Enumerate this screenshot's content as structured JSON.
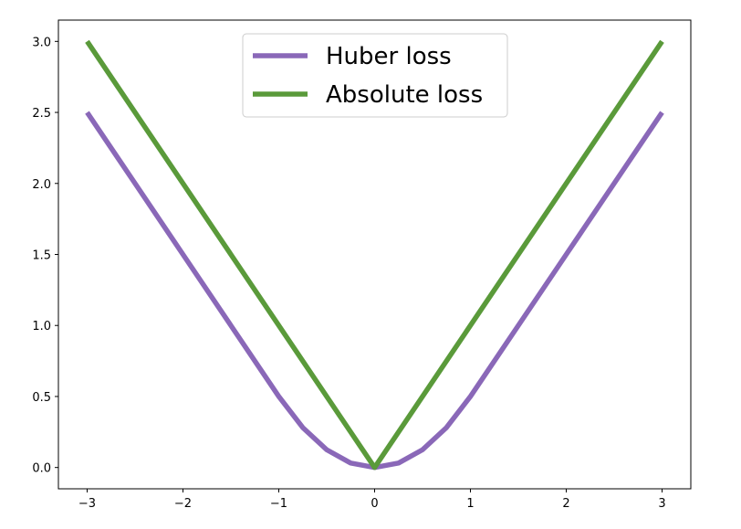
{
  "chart_data": {
    "type": "line",
    "title": "",
    "xlabel": "",
    "ylabel": "",
    "xlim": [
      -3.3,
      3.3
    ],
    "ylim": [
      -0.15,
      3.15
    ],
    "xticks": [
      -3,
      -2,
      -1,
      0,
      1,
      2,
      3
    ],
    "xtick_labels": [
      "−3",
      "−2",
      "−1",
      "0",
      "1",
      "2",
      "3"
    ],
    "yticks": [
      0.0,
      0.5,
      1.0,
      1.5,
      2.0,
      2.5,
      3.0
    ],
    "ytick_labels": [
      "0.0",
      "0.5",
      "1.0",
      "1.5",
      "2.0",
      "2.5",
      "3.0"
    ],
    "grid": false,
    "legend_position": "top-center",
    "series": [
      {
        "name": "Huber loss",
        "color": "#8a68b8",
        "x": [
          -3,
          -2.5,
          -2,
          -1.5,
          -1,
          -0.75,
          -0.5,
          -0.25,
          0,
          0.25,
          0.5,
          0.75,
          1,
          1.5,
          2,
          2.5,
          3
        ],
        "y": [
          2.5,
          2.0,
          1.5,
          1.0,
          0.5,
          0.28125,
          0.125,
          0.03125,
          0.0,
          0.03125,
          0.125,
          0.28125,
          0.5,
          1.0,
          1.5,
          2.0,
          2.5
        ]
      },
      {
        "name": "Absolute loss",
        "color": "#5a9a3a",
        "x": [
          -3,
          0,
          3
        ],
        "y": [
          3.0,
          0.0,
          3.0
        ]
      }
    ]
  }
}
